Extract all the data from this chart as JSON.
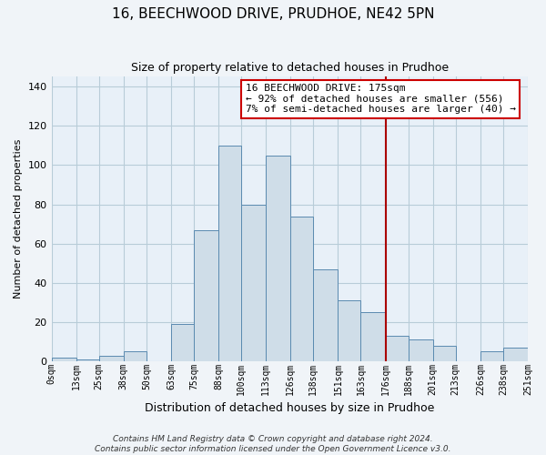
{
  "title": "16, BEECHWOOD DRIVE, PRUDHOE, NE42 5PN",
  "subtitle": "Size of property relative to detached houses in Prudhoe",
  "xlabel": "Distribution of detached houses by size in Prudhoe",
  "ylabel": "Number of detached properties",
  "bar_edges": [
    0,
    13,
    25,
    38,
    50,
    63,
    75,
    88,
    100,
    113,
    126,
    138,
    151,
    163,
    176,
    188,
    201,
    213,
    226,
    238,
    251
  ],
  "bar_heights": [
    2,
    1,
    3,
    5,
    0,
    19,
    67,
    110,
    80,
    105,
    74,
    47,
    31,
    25,
    13,
    11,
    8,
    0,
    5,
    7
  ],
  "tick_labels": [
    "0sqm",
    "13sqm",
    "25sqm",
    "38sqm",
    "50sqm",
    "63sqm",
    "75sqm",
    "88sqm",
    "100sqm",
    "113sqm",
    "126sqm",
    "138sqm",
    "151sqm",
    "163sqm",
    "176sqm",
    "188sqm",
    "201sqm",
    "213sqm",
    "226sqm",
    "238sqm",
    "251sqm"
  ],
  "bar_color": "#cfdde8",
  "bar_edge_color": "#5a8ab0",
  "vline_x": 176,
  "vline_color": "#aa0000",
  "ylim": [
    0,
    145
  ],
  "yticks": [
    0,
    20,
    40,
    60,
    80,
    100,
    120,
    140
  ],
  "annotation_title": "16 BEECHWOOD DRIVE: 175sqm",
  "annotation_line1": "← 92% of detached houses are smaller (556)",
  "annotation_line2": "7% of semi-detached houses are larger (40) →",
  "annotation_box_facecolor": "#ffffff",
  "annotation_border_color": "#cc0000",
  "footer_line1": "Contains HM Land Registry data © Crown copyright and database right 2024.",
  "footer_line2": "Contains public sector information licensed under the Open Government Licence v3.0.",
  "grid_color": "#b8ccd8",
  "plot_bg_color": "#e8f0f8",
  "fig_bg_color": "#f0f4f8",
  "title_fontsize": 11,
  "subtitle_fontsize": 9,
  "ylabel_fontsize": 8,
  "xlabel_fontsize": 9,
  "tick_fontsize": 7,
  "ann_fontsize": 8,
  "footer_fontsize": 6.5
}
